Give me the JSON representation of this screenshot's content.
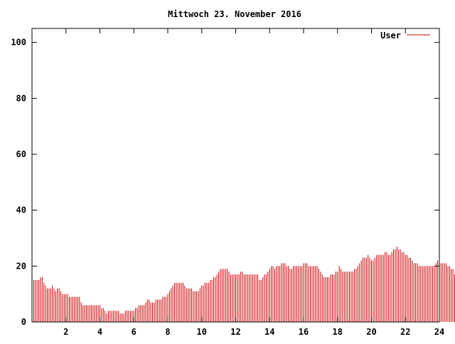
{
  "chart_data": {
    "type": "bar",
    "title": "Mittwoch 23. November 2016",
    "xlabel": "",
    "ylabel": "",
    "xlim": [
      0,
      24
    ],
    "ylim": [
      0,
      105
    ],
    "xticks": [
      2,
      4,
      6,
      8,
      10,
      12,
      14,
      16,
      18,
      20,
      22,
      24
    ],
    "yticks": [
      0,
      20,
      40,
      60,
      80,
      100
    ],
    "grid": false,
    "legend": "top-right",
    "series": [
      {
        "name": "User",
        "color": "#cc0000",
        "x_start": 0,
        "x_step": 0.1,
        "values": [
          16,
          15,
          15,
          15,
          15,
          16,
          16,
          14,
          13,
          12,
          12,
          12,
          13,
          12,
          11,
          12,
          12,
          11,
          10,
          10,
          10,
          10,
          9,
          9,
          9,
          9,
          9,
          9,
          9,
          7,
          6,
          6,
          6,
          6,
          6,
          6,
          6,
          6,
          6,
          6,
          6,
          5,
          5,
          4,
          3,
          4,
          4,
          4,
          4,
          4,
          4,
          4,
          3,
          3,
          3,
          4,
          4,
          4,
          4,
          4,
          4,
          5,
          5,
          6,
          6,
          6,
          6,
          7,
          8,
          8,
          7,
          7,
          7,
          8,
          8,
          8,
          8,
          9,
          9,
          9,
          10,
          11,
          12,
          13,
          14,
          14,
          14,
          14,
          14,
          14,
          13,
          12,
          12,
          12,
          12,
          11,
          11,
          11,
          11,
          12,
          13,
          13,
          14,
          14,
          14,
          15,
          15,
          16,
          16,
          17,
          18,
          19,
          19,
          19,
          19,
          19,
          18,
          17,
          17,
          17,
          17,
          17,
          17,
          18,
          18,
          17,
          17,
          17,
          17,
          17,
          17,
          17,
          17,
          17,
          15,
          15,
          16,
          17,
          17,
          18,
          19,
          20,
          20,
          19,
          20,
          20,
          20,
          21,
          21,
          21,
          20,
          20,
          19,
          19,
          20,
          20,
          20,
          20,
          20,
          20,
          21,
          21,
          21,
          20,
          20,
          20,
          20,
          20,
          20,
          19,
          18,
          17,
          16,
          16,
          16,
          16,
          17,
          17,
          17,
          18,
          18,
          20,
          19,
          18,
          18,
          18,
          18,
          18,
          18,
          18,
          19,
          19,
          20,
          21,
          22,
          23,
          23,
          23,
          24,
          23,
          22,
          22,
          23,
          24,
          24,
          24,
          24,
          24,
          25,
          25,
          24,
          24,
          25,
          26,
          26,
          27,
          26,
          26,
          25,
          25,
          24,
          24,
          23,
          23,
          22,
          21,
          21,
          21,
          20,
          20,
          20,
          20,
          20,
          20,
          20,
          20,
          20,
          20,
          21,
          22,
          21,
          21,
          21,
          21,
          21,
          20,
          20,
          19,
          19,
          17,
          16,
          17,
          17,
          17
        ]
      }
    ]
  }
}
